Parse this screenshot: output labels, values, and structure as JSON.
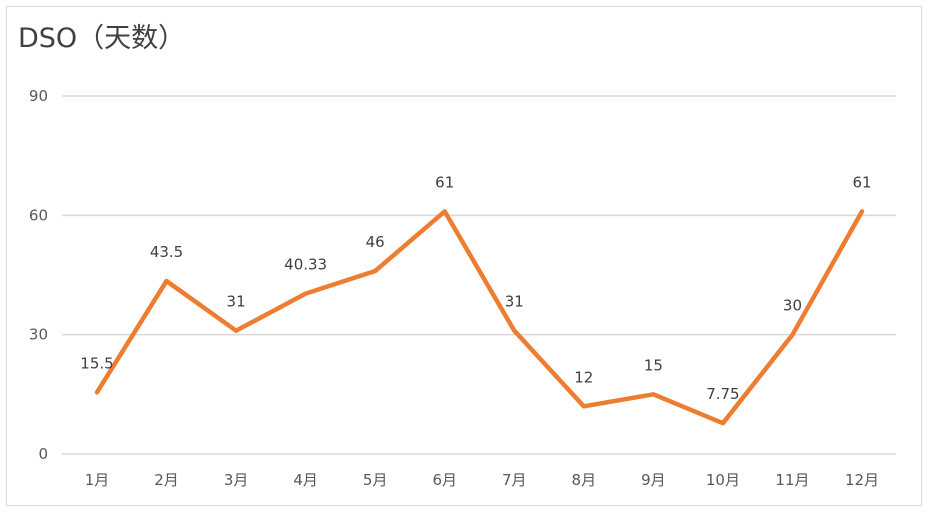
{
  "chart_data": {
    "type": "line",
    "title": "DSO（天数）",
    "xlabel": "",
    "ylabel": "",
    "categories": [
      "1月",
      "2月",
      "3月",
      "4月",
      "5月",
      "6月",
      "7月",
      "8月",
      "9月",
      "10月",
      "11月",
      "12月"
    ],
    "series": [
      {
        "values": [
          15.5,
          43.5,
          31,
          40.33,
          46,
          61,
          31,
          12,
          15,
          7.75,
          30,
          61
        ],
        "color": "#ed7d31"
      }
    ],
    "data_labels": [
      "15.5",
      "43.5",
      "31",
      "40.33",
      "46",
      "61",
      "31",
      "12",
      "15",
      "7.75",
      "30",
      "61"
    ],
    "ylim": [
      0,
      90
    ],
    "yticks": [
      0,
      30,
      60,
      90
    ],
    "grid": true,
    "legend": "none"
  }
}
